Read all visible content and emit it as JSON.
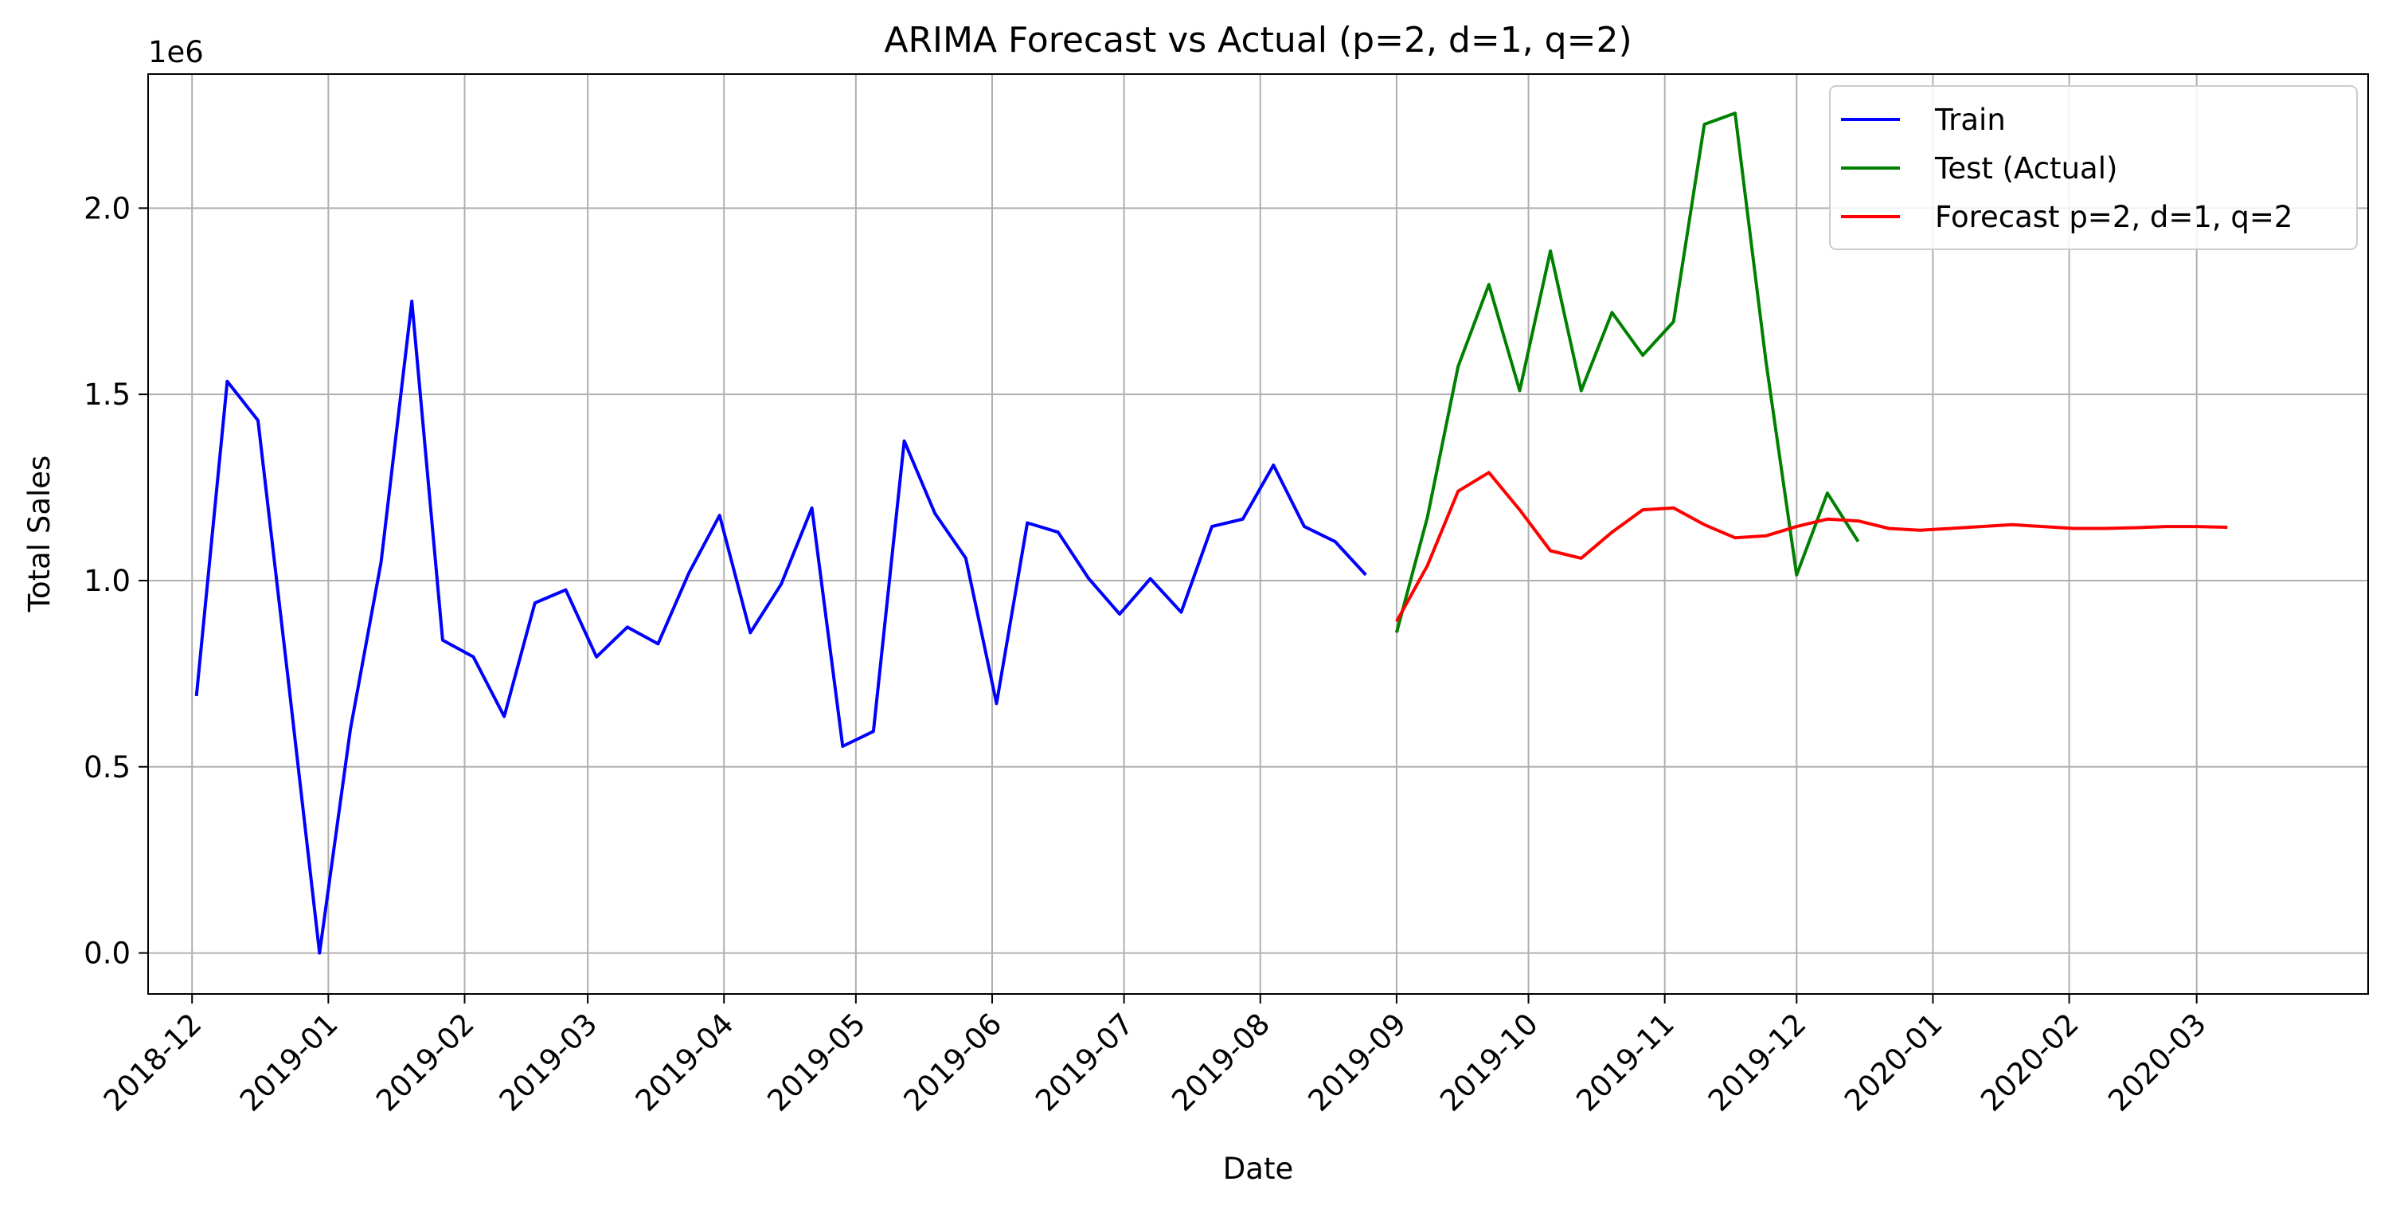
{
  "chart_data": {
    "type": "line",
    "title": "ARIMA Forecast vs Actual (p=2, d=1, q=2)",
    "xlabel": "Date",
    "ylabel": "Total Sales",
    "y_offset_label": "1e6",
    "xlim": [
      "2018-11-21",
      "2020-04-09"
    ],
    "ylim": [
      -110000,
      2360000
    ],
    "grid": true,
    "legend_position": "top-right",
    "x_ticks": [
      "2018-12",
      "2019-01",
      "2019-02",
      "2019-03",
      "2019-04",
      "2019-05",
      "2019-06",
      "2019-07",
      "2019-08",
      "2019-09",
      "2019-10",
      "2019-11",
      "2019-12",
      "2020-01",
      "2020-02",
      "2020-03"
    ],
    "y_ticks": [
      "0.0",
      "0.5",
      "1.0",
      "1.5",
      "2.0"
    ],
    "series": [
      {
        "name": "Train",
        "color": "#0000ff",
        "x": [
          "2018-12-02",
          "2018-12-09",
          "2018-12-16",
          "2018-12-23",
          "2018-12-30",
          "2019-01-06",
          "2019-01-13",
          "2019-01-20",
          "2019-01-27",
          "2019-02-03",
          "2019-02-10",
          "2019-02-17",
          "2019-02-24",
          "2019-03-03",
          "2019-03-10",
          "2019-03-17",
          "2019-03-24",
          "2019-03-31",
          "2019-04-07",
          "2019-04-14",
          "2019-04-21",
          "2019-04-28",
          "2019-05-05",
          "2019-05-12",
          "2019-05-19",
          "2019-05-26",
          "2019-06-02",
          "2019-06-09",
          "2019-06-16",
          "2019-06-23",
          "2019-06-30",
          "2019-07-07",
          "2019-07-14",
          "2019-07-21",
          "2019-07-28",
          "2019-08-04",
          "2019-08-11",
          "2019-08-18",
          "2019-08-25"
        ],
        "y": [
          690000,
          1535000,
          1430000,
          720000,
          0,
          600000,
          1050000,
          1750000,
          840000,
          795000,
          635000,
          940000,
          975000,
          795000,
          875000,
          830000,
          1020000,
          1175000,
          860000,
          990000,
          1195000,
          555000,
          595000,
          1375000,
          1180000,
          1060000,
          670000,
          1155000,
          1130000,
          1005000,
          910000,
          1005000,
          915000,
          1145000,
          1165000,
          1310000,
          1145000,
          1105000,
          1015000
        ]
      },
      {
        "name": "Test (Actual)",
        "color": "#008000",
        "x": [
          "2019-09-01",
          "2019-09-08",
          "2019-09-15",
          "2019-09-22",
          "2019-09-29",
          "2019-10-06",
          "2019-10-13",
          "2019-10-20",
          "2019-10-27",
          "2019-11-03",
          "2019-11-10",
          "2019-11-17",
          "2019-11-24",
          "2019-12-01",
          "2019-12-08",
          "2019-12-15"
        ],
        "y": [
          860000,
          1170000,
          1575000,
          1795000,
          1510000,
          1885000,
          1510000,
          1720000,
          1605000,
          1695000,
          2225000,
          2255000,
          1590000,
          1015000,
          1235000,
          1105000
        ]
      },
      {
        "name": "Forecast p=2, d=1, q=2",
        "color": "#ff0000",
        "x": [
          "2019-09-01",
          "2019-09-08",
          "2019-09-15",
          "2019-09-22",
          "2019-09-29",
          "2019-10-06",
          "2019-10-13",
          "2019-10-20",
          "2019-10-27",
          "2019-11-03",
          "2019-11-10",
          "2019-11-17",
          "2019-11-24",
          "2019-12-01",
          "2019-12-08",
          "2019-12-15",
          "2019-12-22",
          "2019-12-29",
          "2020-01-05",
          "2020-01-12",
          "2020-01-19",
          "2020-01-26",
          "2020-02-02",
          "2020-02-09",
          "2020-02-16",
          "2020-02-23",
          "2020-03-01",
          "2020-03-08"
        ],
        "y": [
          890000,
          1040000,
          1240000,
          1290000,
          1190000,
          1080000,
          1060000,
          1130000,
          1190000,
          1195000,
          1150000,
          1115000,
          1120000,
          1145000,
          1165000,
          1160000,
          1140000,
          1135000,
          1140000,
          1145000,
          1150000,
          1145000,
          1140000,
          1140000,
          1142000,
          1145000,
          1145000,
          1143000
        ]
      }
    ]
  }
}
